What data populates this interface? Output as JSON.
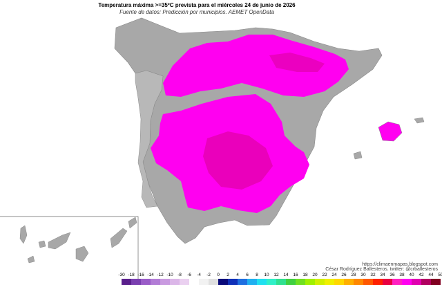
{
  "title": "Temperatura máxima >=35ºC prevista para el miércoles 24 de junio de 2026",
  "subtitle": "Fuente de datos: Predicción por municipios. AEMET OpenData",
  "credits": {
    "website": "https://climaenmapas.blogspot.com",
    "author": "César Rodríguez Ballesteros. twitter: @crballesteros"
  },
  "map": {
    "base_color": "#a8a8a8",
    "highlight_color": "#ff00f0",
    "highlight_dark": "#d80090",
    "threshold_label": ">=35ºC"
  },
  "legend": {
    "labels": [
      "-30",
      "-18",
      "-16",
      "-14",
      "-12",
      "-10",
      "-8",
      "-6",
      "-4",
      "-2",
      "0",
      "2",
      "4",
      "6",
      "8",
      "10",
      "12",
      "14",
      "16",
      "18",
      "20",
      "22",
      "24",
      "26",
      "28",
      "30",
      "32",
      "34",
      "36",
      "38",
      "40",
      "42",
      "44",
      "50"
    ],
    "colors": [
      "#5a1f8c",
      "#7a3fb0",
      "#9a5cc8",
      "#b27cd6",
      "#c99ae0",
      "#dbb6e8",
      "#ead0f0",
      "#ffffff",
      "#f2f2f2",
      "#e0e0e0",
      "#0a0a7a",
      "#1030b8",
      "#1f6fe0",
      "#20b0f0",
      "#20e0f0",
      "#30f0c8",
      "#30e090",
      "#40d040",
      "#70e020",
      "#a0f000",
      "#d0f000",
      "#f0f000",
      "#ffd800",
      "#ffb000",
      "#ff8800",
      "#ff5800",
      "#ff2000",
      "#e80040",
      "#ff20c0",
      "#ff00f0",
      "#e000b0",
      "#b00060",
      "#800020"
    ]
  }
}
